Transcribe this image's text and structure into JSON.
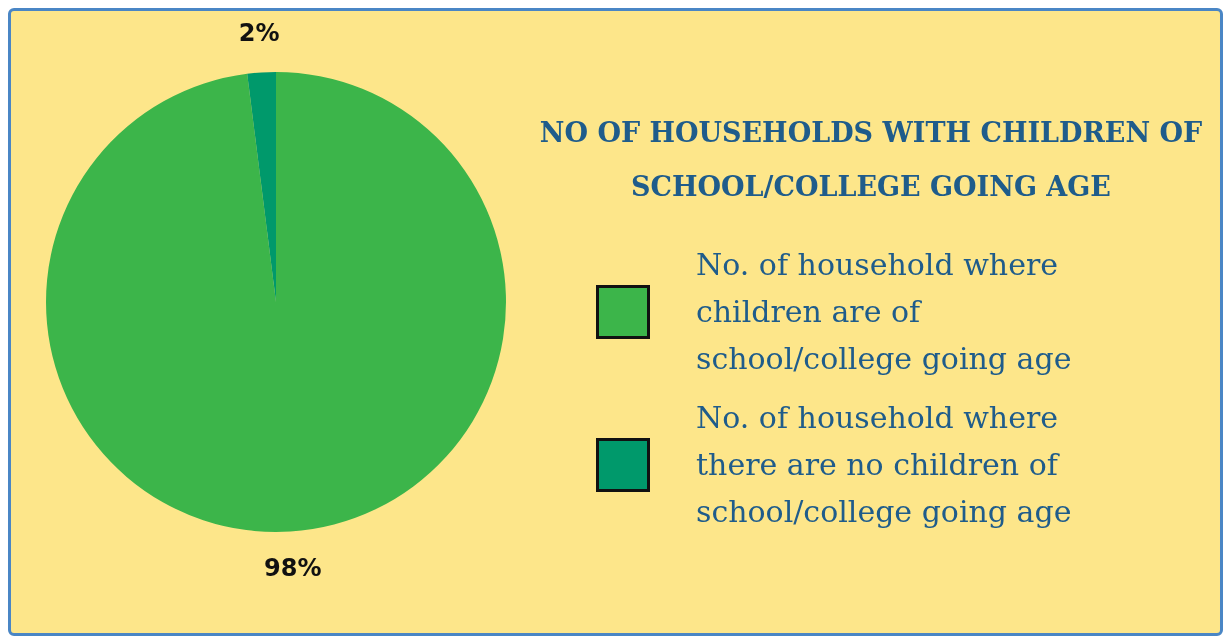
{
  "chart_data": {
    "type": "pie",
    "title": "NO OF HOUSEHOLDS WITH CHILDREN OF SCHOOL/COLLEGE GOING AGE",
    "categories": [
      "No. of household where children are of school/college going age",
      "No. of household where there are no children of school/college going age"
    ],
    "values": [
      98,
      2
    ],
    "colors": [
      "#3cb54a",
      "#00996b"
    ],
    "value_labels": [
      "98%",
      "2%"
    ],
    "legend": "right"
  }
}
